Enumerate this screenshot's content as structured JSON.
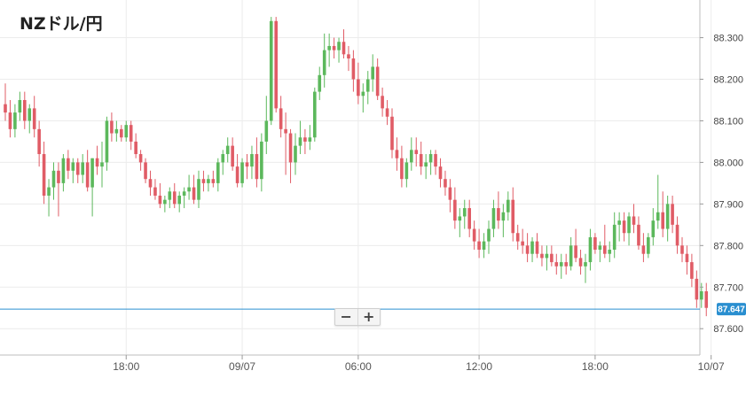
{
  "chart_title": "NZドル/円",
  "zoom": {
    "minus": "−",
    "plus": "+"
  },
  "chart_data": {
    "type": "candlestick",
    "title": "NZドル/円",
    "ylim": [
      87.56,
      88.38
    ],
    "yticks": [
      "87.600",
      "87.700",
      "87.800",
      "87.900",
      "88.000",
      "88.100",
      "88.200",
      "88.300"
    ],
    "xticks": [
      {
        "label": "18:00",
        "i": 25
      },
      {
        "label": "09/07",
        "i": 49
      },
      {
        "label": "06:00",
        "i": 73
      },
      {
        "label": "12:00",
        "i": 98
      },
      {
        "label": "18:00",
        "i": 122
      },
      {
        "label": "10/07",
        "i": 146
      }
    ],
    "last_price": "87.647",
    "grid": true,
    "up_color": "#5cb85c",
    "down_color": "#e05c66",
    "price_line_color": "#2a8fd0",
    "candles": [
      [
        88.14,
        88.19,
        88.1,
        88.12
      ],
      [
        88.12,
        88.15,
        88.06,
        88.08
      ],
      [
        88.08,
        88.14,
        88.06,
        88.12
      ],
      [
        88.12,
        88.17,
        88.1,
        88.15
      ],
      [
        88.15,
        88.17,
        88.08,
        88.1
      ],
      [
        88.1,
        88.14,
        88.07,
        88.13
      ],
      [
        88.13,
        88.16,
        88.06,
        88.08
      ],
      [
        88.08,
        88.1,
        87.99,
        88.02
      ],
      [
        88.02,
        88.05,
        87.9,
        87.92
      ],
      [
        87.92,
        87.96,
        87.87,
        87.94
      ],
      [
        87.94,
        88.0,
        87.91,
        87.98
      ],
      [
        87.98,
        88.0,
        87.87,
        87.95
      ],
      [
        87.95,
        88.02,
        87.93,
        88.01
      ],
      [
        88.01,
        88.03,
        87.96,
        87.98
      ],
      [
        87.98,
        88.01,
        87.95,
        88.0
      ],
      [
        88.0,
        88.01,
        87.95,
        87.97
      ],
      [
        87.97,
        88.02,
        87.95,
        88.0
      ],
      [
        88.0,
        88.03,
        87.93,
        87.94
      ],
      [
        87.94,
        88.01,
        87.87,
        88.01
      ],
      [
        88.01,
        88.04,
        87.97,
        87.99
      ],
      [
        87.99,
        88.05,
        87.94,
        88.0
      ],
      [
        88.0,
        88.11,
        87.98,
        88.1
      ],
      [
        88.1,
        88.12,
        88.05,
        88.07
      ],
      [
        88.07,
        88.1,
        88.05,
        88.08
      ],
      [
        88.08,
        88.09,
        88.05,
        88.06
      ],
      [
        88.06,
        88.1,
        88.05,
        88.09
      ],
      [
        88.09,
        88.1,
        88.03,
        88.05
      ],
      [
        88.05,
        88.07,
        88.01,
        88.02
      ],
      [
        88.02,
        88.03,
        87.98,
        88.0
      ],
      [
        88.0,
        88.01,
        87.95,
        87.96
      ],
      [
        87.96,
        87.98,
        87.92,
        87.94
      ],
      [
        87.94,
        87.96,
        87.91,
        87.92
      ],
      [
        87.92,
        87.95,
        87.89,
        87.9
      ],
      [
        87.9,
        87.92,
        87.88,
        87.91
      ],
      [
        87.91,
        87.94,
        87.89,
        87.93
      ],
      [
        87.93,
        87.95,
        87.89,
        87.9
      ],
      [
        87.9,
        87.93,
        87.88,
        87.92
      ],
      [
        87.92,
        87.94,
        87.89,
        87.93
      ],
      [
        87.93,
        87.97,
        87.91,
        87.94
      ],
      [
        87.94,
        87.97,
        87.9,
        87.91
      ],
      [
        87.91,
        87.98,
        87.89,
        87.96
      ],
      [
        87.96,
        87.98,
        87.93,
        87.95
      ],
      [
        87.95,
        87.97,
        87.93,
        87.96
      ],
      [
        87.96,
        87.98,
        87.94,
        87.95
      ],
      [
        87.95,
        88.01,
        87.93,
        88.0
      ],
      [
        88.0,
        88.03,
        87.97,
        88.02
      ],
      [
        88.02,
        88.06,
        88.0,
        88.04
      ],
      [
        88.04,
        88.06,
        87.98,
        87.99
      ],
      [
        87.99,
        88.02,
        87.94,
        87.95
      ],
      [
        87.95,
        88.01,
        87.94,
        88.0
      ],
      [
        88.0,
        88.02,
        87.96,
        87.99
      ],
      [
        87.99,
        88.04,
        87.96,
        88.02
      ],
      [
        88.02,
        88.06,
        87.94,
        87.96
      ],
      [
        87.96,
        88.07,
        87.93,
        88.05
      ],
      [
        88.05,
        88.16,
        88.02,
        88.1
      ],
      [
        88.1,
        88.35,
        88.09,
        88.34
      ],
      [
        88.34,
        88.35,
        88.12,
        88.13
      ],
      [
        88.13,
        88.16,
        88.06,
        88.08
      ],
      [
        88.08,
        88.12,
        87.97,
        88.07
      ],
      [
        88.07,
        88.08,
        87.95,
        88.0
      ],
      [
        88.0,
        88.07,
        87.97,
        88.04
      ],
      [
        88.04,
        88.1,
        88.02,
        88.06
      ],
      [
        88.06,
        88.08,
        88.02,
        88.05
      ],
      [
        88.05,
        88.09,
        88.03,
        88.06
      ],
      [
        88.06,
        88.18,
        88.05,
        88.17
      ],
      [
        88.17,
        88.23,
        88.15,
        88.21
      ],
      [
        88.21,
        88.31,
        88.18,
        88.27
      ],
      [
        88.27,
        88.31,
        88.23,
        88.28
      ],
      [
        88.28,
        88.3,
        88.25,
        88.27
      ],
      [
        88.27,
        88.3,
        88.24,
        88.29
      ],
      [
        88.29,
        88.32,
        88.25,
        88.26
      ],
      [
        88.26,
        88.28,
        88.22,
        88.25
      ],
      [
        88.25,
        88.27,
        88.17,
        88.2
      ],
      [
        88.2,
        88.24,
        88.14,
        88.16
      ],
      [
        88.16,
        88.19,
        88.12,
        88.17
      ],
      [
        88.17,
        88.22,
        88.14,
        88.2
      ],
      [
        88.2,
        88.26,
        88.17,
        88.23
      ],
      [
        88.23,
        88.25,
        88.15,
        88.16
      ],
      [
        88.16,
        88.18,
        88.11,
        88.13
      ],
      [
        88.13,
        88.15,
        88.09,
        88.11
      ],
      [
        88.11,
        88.13,
        88.01,
        88.03
      ],
      [
        88.03,
        88.06,
        87.98,
        88.01
      ],
      [
        88.01,
        88.04,
        87.94,
        87.96
      ],
      [
        87.96,
        88.01,
        87.94,
        88.0
      ],
      [
        88.0,
        88.06,
        87.98,
        88.03
      ],
      [
        88.03,
        88.06,
        87.99,
        88.02
      ],
      [
        88.02,
        88.05,
        87.97,
        87.99
      ],
      [
        87.99,
        88.02,
        87.96,
        88.0
      ],
      [
        88.0,
        88.03,
        87.97,
        88.02
      ],
      [
        88.02,
        88.03,
        87.97,
        87.99
      ],
      [
        87.99,
        88.01,
        87.94,
        87.96
      ],
      [
        87.96,
        87.98,
        87.92,
        87.94
      ],
      [
        87.94,
        87.96,
        87.88,
        87.91
      ],
      [
        87.91,
        87.94,
        87.84,
        87.86
      ],
      [
        87.86,
        87.89,
        87.82,
        87.87
      ],
      [
        87.87,
        87.91,
        87.84,
        87.89
      ],
      [
        87.89,
        87.91,
        87.82,
        87.84
      ],
      [
        87.84,
        87.86,
        87.79,
        87.81
      ],
      [
        87.81,
        87.84,
        87.77,
        87.79
      ],
      [
        87.79,
        87.83,
        87.77,
        87.81
      ],
      [
        87.81,
        87.86,
        87.78,
        87.84
      ],
      [
        87.84,
        87.91,
        87.82,
        87.89
      ],
      [
        87.89,
        87.93,
        87.84,
        87.86
      ],
      [
        87.86,
        87.9,
        87.82,
        87.88
      ],
      [
        87.88,
        87.93,
        87.86,
        87.91
      ],
      [
        87.91,
        87.94,
        87.81,
        87.83
      ],
      [
        87.83,
        87.85,
        87.79,
        87.81
      ],
      [
        87.81,
        87.84,
        87.78,
        87.8
      ],
      [
        87.8,
        87.83,
        87.76,
        87.78
      ],
      [
        87.78,
        87.82,
        87.76,
        87.81
      ],
      [
        87.81,
        87.83,
        87.77,
        87.78
      ],
      [
        87.78,
        87.8,
        87.75,
        87.77
      ],
      [
        87.77,
        87.8,
        87.74,
        87.78
      ],
      [
        87.78,
        87.8,
        87.75,
        87.76
      ],
      [
        87.76,
        87.78,
        87.73,
        87.75
      ],
      [
        87.75,
        87.78,
        87.72,
        87.76
      ],
      [
        87.76,
        87.78,
        87.73,
        87.75
      ],
      [
        87.75,
        87.82,
        87.74,
        87.8
      ],
      [
        87.8,
        87.84,
        87.76,
        87.77
      ],
      [
        87.77,
        87.79,
        87.73,
        87.75
      ],
      [
        87.75,
        87.78,
        87.71,
        87.76
      ],
      [
        87.76,
        87.84,
        87.74,
        87.82
      ],
      [
        87.82,
        87.83,
        87.78,
        87.79
      ],
      [
        87.79,
        87.81,
        87.76,
        87.8
      ],
      [
        87.8,
        87.85,
        87.77,
        87.78
      ],
      [
        87.78,
        87.81,
        87.76,
        87.79
      ],
      [
        87.79,
        87.88,
        87.77,
        87.85
      ],
      [
        87.85,
        87.88,
        87.81,
        87.86
      ],
      [
        87.86,
        87.88,
        87.81,
        87.83
      ],
      [
        87.83,
        87.88,
        87.8,
        87.87
      ],
      [
        87.87,
        87.9,
        87.83,
        87.85
      ],
      [
        87.85,
        87.87,
        87.79,
        87.8
      ],
      [
        87.8,
        87.83,
        87.76,
        87.78
      ],
      [
        87.78,
        87.83,
        87.77,
        87.82
      ],
      [
        87.82,
        87.89,
        87.8,
        87.86
      ],
      [
        87.86,
        87.97,
        87.84,
        87.88
      ],
      [
        87.88,
        87.93,
        87.82,
        87.84
      ],
      [
        87.84,
        87.92,
        87.81,
        87.9
      ],
      [
        87.9,
        87.92,
        87.83,
        87.85
      ],
      [
        87.85,
        87.87,
        87.78,
        87.8
      ],
      [
        87.8,
        87.82,
        87.76,
        87.78
      ],
      [
        87.78,
        87.8,
        87.73,
        87.76
      ],
      [
        87.76,
        87.78,
        87.7,
        87.72
      ],
      [
        87.72,
        87.74,
        87.65,
        87.67
      ],
      [
        87.67,
        87.71,
        87.65,
        87.69
      ],
      [
        87.69,
        87.71,
        87.63,
        87.65
      ]
    ]
  }
}
